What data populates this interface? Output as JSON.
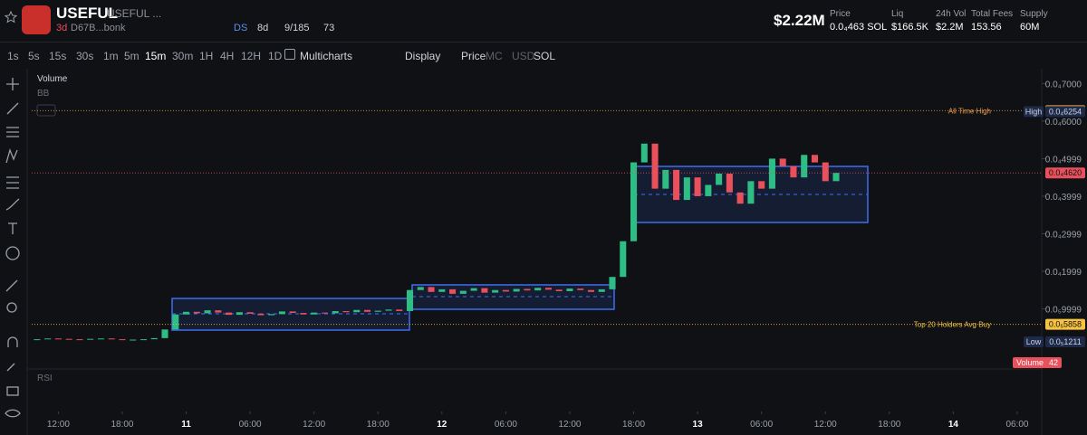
{
  "header": {
    "name": "USEFUL",
    "ticker": "USEFUL ...",
    "age": "3d",
    "address": "D67B...bonk",
    "ds": "DS",
    "ds_age": "8d",
    "holders": "9/185",
    "watchers": "73",
    "mcap": "$2.22M",
    "stats": [
      {
        "label": "Price",
        "value": "0.0₄463 SOL"
      },
      {
        "label": "Liq",
        "value": "$166.5K"
      },
      {
        "label": "24h Vol",
        "value": "$2.2M"
      },
      {
        "label": "Total Fees",
        "value": "153.56"
      },
      {
        "label": "Supply",
        "value": "60M"
      }
    ]
  },
  "toolbar": {
    "intervals": [
      "1s",
      "5s",
      "15s",
      "30s",
      "1m",
      "5m",
      "15m",
      "30m",
      "1H",
      "4H",
      "12H",
      "1D"
    ],
    "multicharts": "Multicharts",
    "display": "Display",
    "price": "Price",
    "mc": "MC",
    "usd": "USD",
    "sol": "SOL"
  },
  "chart_data": {
    "type": "candlestick",
    "indicators": [
      "Volume",
      "BB",
      "RSI"
    ],
    "up_color": "#2ebd85",
    "down_color": "#e8505b",
    "xlim": [
      -2.5,
      94
    ],
    "xticks": [
      {
        "value": 0,
        "label": "12:00"
      },
      {
        "value": 6,
        "label": "18:00"
      },
      {
        "value": 12,
        "label": "11"
      },
      {
        "value": 18,
        "label": "06:00"
      },
      {
        "value": 24,
        "label": "12:00"
      },
      {
        "value": 30,
        "label": "18:00"
      },
      {
        "value": 36,
        "label": "12"
      },
      {
        "value": 42,
        "label": "06:00"
      },
      {
        "value": 48,
        "label": "12:00"
      },
      {
        "value": 54,
        "label": "18:00"
      },
      {
        "value": 60,
        "label": "13"
      },
      {
        "value": 66,
        "label": "06:00"
      },
      {
        "value": 72,
        "label": "12:00"
      },
      {
        "value": 78,
        "label": "18:00"
      },
      {
        "value": 84,
        "label": "14"
      },
      {
        "value": 90,
        "label": "06:00"
      }
    ],
    "ylim": [
      -5.3e-06,
      7.78e-05
    ],
    "yticks": [
      {
        "value": 7e-05,
        "label": "0.0₄7000"
      },
      {
        "value": 6e-05,
        "label": "0.0₄6000"
      },
      {
        "value": 4.999e-05,
        "label": "0.0₄4999"
      },
      {
        "value": 3.999e-05,
        "label": "0.0₄3999"
      },
      {
        "value": 2.999e-05,
        "label": "0.0₄2999"
      },
      {
        "value": 1.999e-05,
        "label": "0.0₄1999"
      },
      {
        "value": 9.99e-06,
        "label": "0.0₅9999"
      }
    ],
    "x": [
      -2,
      -1,
      0,
      1,
      2,
      3,
      4,
      5,
      6,
      7,
      8,
      9,
      10,
      11,
      12,
      13,
      14,
      15,
      16,
      17,
      18,
      19,
      20,
      21,
      22,
      23,
      24,
      25,
      26,
      27,
      28,
      29,
      30,
      31,
      32,
      33,
      34,
      35,
      36,
      37,
      38,
      39,
      40,
      41,
      42,
      43,
      44,
      45,
      46,
      47,
      48,
      49,
      50,
      51,
      52,
      53,
      54,
      55,
      56,
      57,
      58,
      59,
      60,
      61,
      62,
      63,
      64,
      65,
      66,
      67,
      68,
      69,
      70,
      71,
      72,
      73
    ],
    "close": [
      1.9e-06,
      2.1e-06,
      2e-06,
      1.9e-06,
      1.8e-06,
      2e-06,
      2.1e-06,
      1.9e-06,
      1.7e-06,
      1.8e-06,
      1.9e-06,
      2.2e-06,
      4.5e-06,
      8.5e-06,
      9.2e-06,
      8.8e-06,
      9.6e-06,
      9e-06,
      8.4e-06,
      9.1e-06,
      8.7e-06,
      8.3e-06,
      8.6e-06,
      9.3e-06,
      8.9e-06,
      8.5e-06,
      9e-06,
      8.8e-06,
      9.4e-06,
      9.1e-06,
      9.7e-06,
      9.2e-06,
      9.5e-06,
      9.8e-06,
      9.4e-06,
      1.5e-05,
      1.58e-05,
      1.45e-05,
      1.52e-05,
      1.4e-05,
      1.48e-05,
      1.55e-05,
      1.43e-05,
      1.5e-05,
      1.46e-05,
      1.53e-05,
      1.49e-05,
      1.56e-05,
      1.51e-05,
      1.47e-05,
      1.54e-05,
      1.5e-05,
      1.45e-05,
      1.52e-05,
      1.85e-05,
      2.8e-05,
      4.9e-05,
      5.4e-05,
      4.2e-05,
      4.7e-05,
      3.9e-05,
      4.5e-05,
      4e-05,
      4.3e-05,
      4.6e-05,
      4.1e-05,
      3.8e-05,
      4.4e-05,
      4.2e-05,
      5e-05,
      4.8e-05,
      4.5e-05,
      5.1e-05,
      4.9e-05,
      4.4e-05,
      4.62e-05
    ],
    "price_lines": [
      {
        "name": "All Time High",
        "value": 6.279e-05,
        "label": "0.0₄6279",
        "color": "#f0a04b"
      },
      {
        "tag": "High",
        "value": 6.254e-05,
        "label": "0.0₄6254",
        "color": "#1e2a4a"
      },
      {
        "value": 4.62e-05,
        "label": "0.0₄4620",
        "color": "#e8505b"
      },
      {
        "name": "Top 20 Holders Avg Buy",
        "value": 5.858e-06,
        "label": "0.0₅5858",
        "color": "#f5c242"
      },
      {
        "tag": "Low",
        "value": 1.211e-06,
        "label": "0.0₅1211",
        "color": "#1e2a4a"
      }
    ],
    "volume_label": "Volume",
    "volume_value": 42
  }
}
